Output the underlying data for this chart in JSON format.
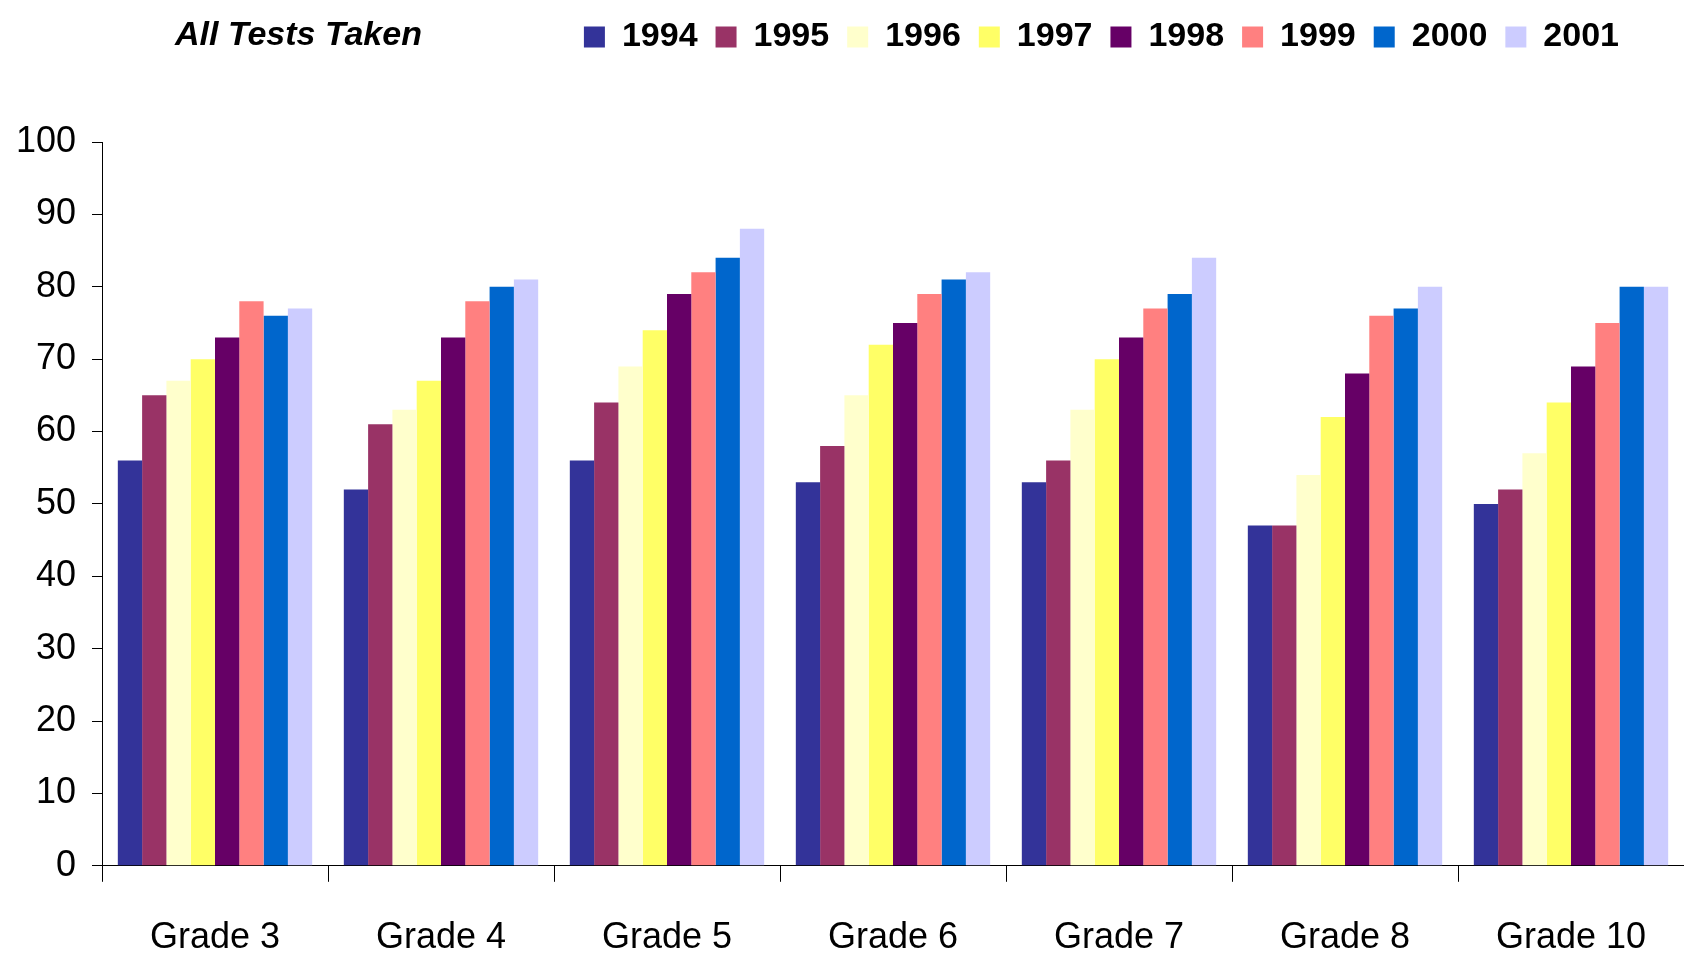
{
  "chart_data": {
    "type": "bar",
    "title": "All Tests Taken",
    "categories": [
      "Grade 3",
      "Grade 4",
      "Grade 5",
      "Grade 6",
      "Grade 7",
      "Grade 8",
      "Grade 10"
    ],
    "series": [
      {
        "name": "1994",
        "color": "#333399",
        "values": [
          56,
          52,
          56,
          53,
          53,
          47,
          50
        ]
      },
      {
        "name": "1995",
        "color": "#993366",
        "values": [
          65,
          61,
          64,
          58,
          56,
          47,
          52
        ]
      },
      {
        "name": "1996",
        "color": "#ffffcc",
        "values": [
          67,
          63,
          69,
          65,
          63,
          54,
          57
        ]
      },
      {
        "name": "1997",
        "color": "#ffff66",
        "values": [
          70,
          67,
          74,
          72,
          70,
          62,
          64
        ]
      },
      {
        "name": "1998",
        "color": "#660066",
        "values": [
          73,
          73,
          79,
          75,
          73,
          68,
          69
        ]
      },
      {
        "name": "1999",
        "color": "#ff8080",
        "values": [
          78,
          78,
          82,
          79,
          77,
          76,
          75
        ]
      },
      {
        "name": "2000",
        "color": "#0066cc",
        "values": [
          76,
          80,
          84,
          81,
          79,
          77,
          80
        ]
      },
      {
        "name": "2001",
        "color": "#ccccff",
        "values": [
          77,
          81,
          88,
          82,
          84,
          80,
          80
        ]
      }
    ],
    "ylim": [
      0,
      100
    ],
    "yticks": [
      0,
      10,
      20,
      30,
      40,
      50,
      60,
      70,
      80,
      90,
      100
    ],
    "legend": "top right"
  }
}
